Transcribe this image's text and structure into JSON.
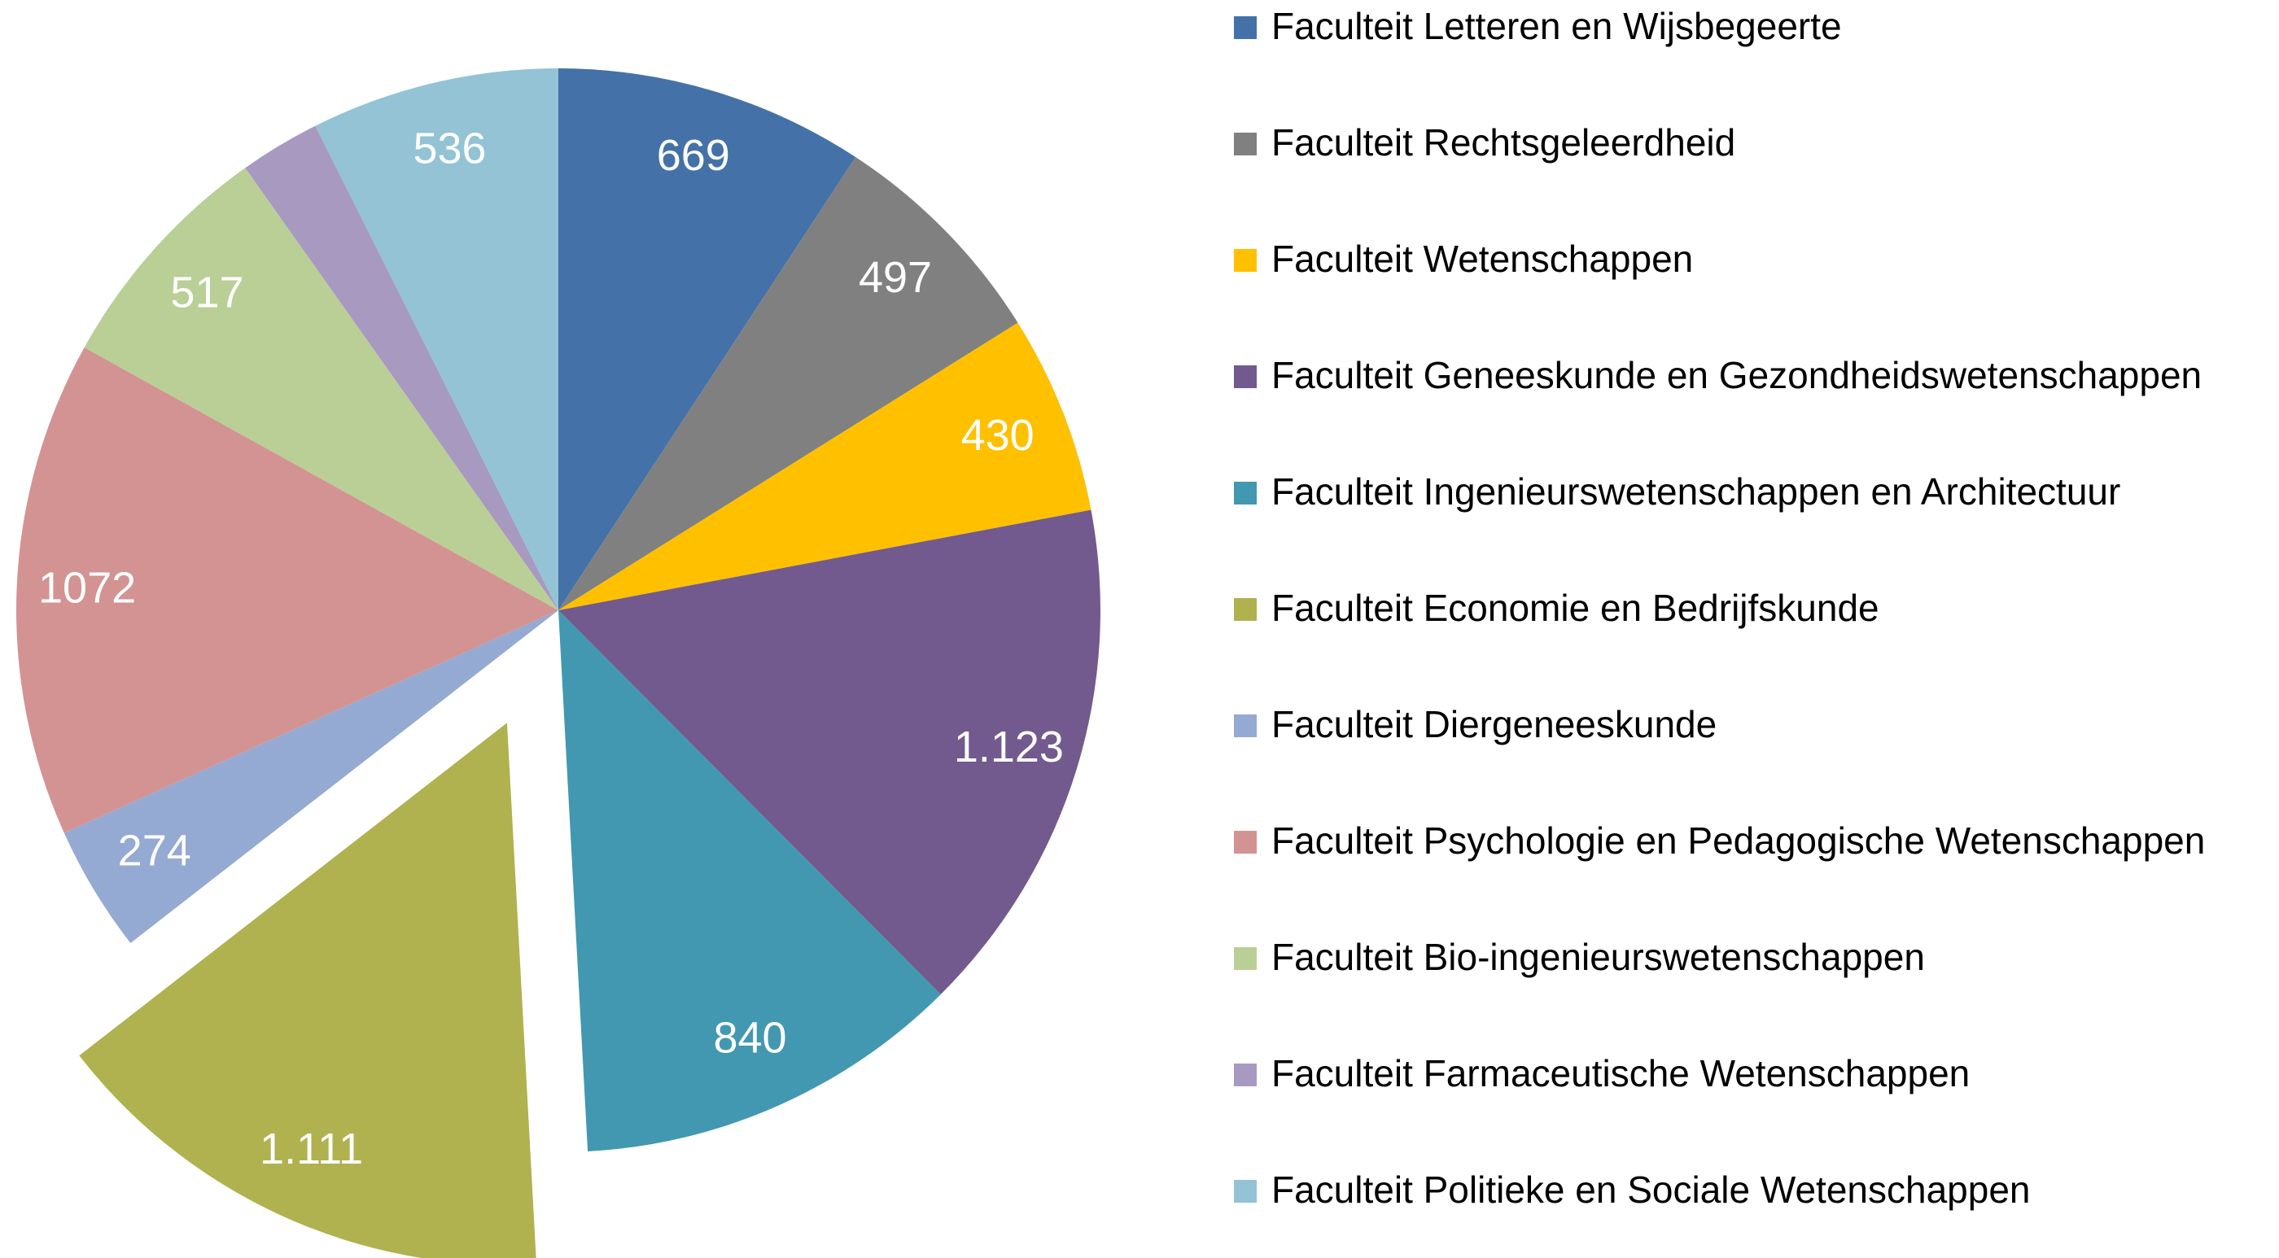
{
  "chart_data": {
    "type": "pie",
    "categories": [
      "Faculteit Letteren en Wijsbegeerte",
      "Faculteit Rechtsgeleerdheid",
      "Faculteit Wetenschappen",
      "Faculteit Geneeskunde en Gezondheidswetenschappen",
      "Faculteit Ingenieurswetenschappen en Architectuur",
      "Faculteit Economie en Bedrijfskunde",
      "Faculteit Diergeneeskunde",
      "Faculteit Psychologie en Pedagogische Wetenschappen",
      "Faculteit Bio-ingenieurswetenschappen",
      "Faculteit Farmaceutische Wetenschappen",
      "Faculteit Politieke en Sociale Wetenschappen"
    ],
    "values": [
      669,
      497,
      430,
      1123,
      840,
      1111,
      274,
      1072,
      517,
      174,
      536
    ],
    "value_labels": [
      "669",
      "497",
      "430",
      "1.123",
      "840",
      "1.111",
      "274",
      "1072",
      "517",
      null,
      "536"
    ],
    "colors": [
      "#4472a8",
      "#808080",
      "#ffc000",
      "#725a8e",
      "#4298b0",
      "#afb24f",
      "#95aad2",
      "#d39393",
      "#b9cf96",
      "#a899c1",
      "#93c3d5"
    ],
    "explode_index": 5,
    "legend": "right"
  }
}
